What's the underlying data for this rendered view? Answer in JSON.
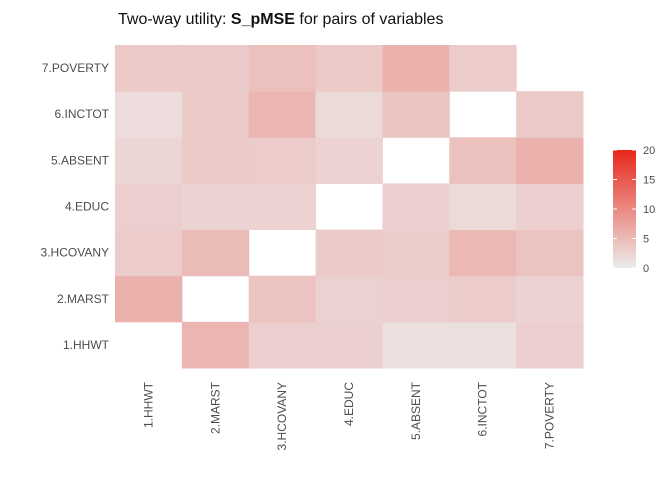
{
  "chart_data": {
    "type": "heatmap",
    "title_prefix": "Two-way utility: ",
    "title_bold": "S_pMSE",
    "title_suffix": " for pairs of variables",
    "variables": [
      "1.HHWT",
      "2.MARST",
      "3.HCOVANY",
      "4.EDUC",
      "5.ABSENT",
      "6.INCTOT",
      "7.POVERTY"
    ],
    "grid": false,
    "legend_position": "right",
    "color_scale": {
      "low": "#ececec",
      "high": "#e8271a",
      "min": 0,
      "max": 20
    },
    "legend_ticks": [
      0,
      5,
      10,
      15,
      20
    ],
    "cells": [
      {
        "row": "1.HHWT",
        "col": "2.MARST",
        "value": 5.5
      },
      {
        "row": "1.HHWT",
        "col": "3.HCOVANY",
        "value": 3.0
      },
      {
        "row": "1.HHWT",
        "col": "4.EDUC",
        "value": 2.8
      },
      {
        "row": "1.HHWT",
        "col": "5.ABSENT",
        "value": 1.3
      },
      {
        "row": "1.HHWT",
        "col": "6.INCTOT",
        "value": 1.2
      },
      {
        "row": "1.HHWT",
        "col": "7.POVERTY",
        "value": 3.0
      },
      {
        "row": "2.MARST",
        "col": "1.HHWT",
        "value": 6.0
      },
      {
        "row": "2.MARST",
        "col": "3.HCOVANY",
        "value": 4.2
      },
      {
        "row": "2.MARST",
        "col": "4.EDUC",
        "value": 2.7
      },
      {
        "row": "2.MARST",
        "col": "5.ABSENT",
        "value": 3.0
      },
      {
        "row": "2.MARST",
        "col": "6.INCTOT",
        "value": 3.2
      },
      {
        "row": "2.MARST",
        "col": "7.POVERTY",
        "value": 2.5
      },
      {
        "row": "3.HCOVANY",
        "col": "1.HHWT",
        "value": 3.2
      },
      {
        "row": "3.HCOVANY",
        "col": "2.MARST",
        "value": 5.0
      },
      {
        "row": "3.HCOVANY",
        "col": "4.EDUC",
        "value": 3.3
      },
      {
        "row": "3.HCOVANY",
        "col": "5.ABSENT",
        "value": 3.1
      },
      {
        "row": "3.HCOVANY",
        "col": "6.INCTOT",
        "value": 5.3
      },
      {
        "row": "3.HCOVANY",
        "col": "7.POVERTY",
        "value": 4.2
      },
      {
        "row": "4.EDUC",
        "col": "1.HHWT",
        "value": 3.0
      },
      {
        "row": "4.EDUC",
        "col": "2.MARST",
        "value": 2.5
      },
      {
        "row": "4.EDUC",
        "col": "3.HCOVANY",
        "value": 2.5
      },
      {
        "row": "4.EDUC",
        "col": "5.ABSENT",
        "value": 2.8
      },
      {
        "row": "4.EDUC",
        "col": "6.INCTOT",
        "value": 1.8
      },
      {
        "row": "4.EDUC",
        "col": "7.POVERTY",
        "value": 3.0
      },
      {
        "row": "5.ABSENT",
        "col": "1.HHWT",
        "value": 2.2
      },
      {
        "row": "5.ABSENT",
        "col": "2.MARST",
        "value": 3.5
      },
      {
        "row": "5.ABSENT",
        "col": "3.HCOVANY",
        "value": 3.2
      },
      {
        "row": "5.ABSENT",
        "col": "4.EDUC",
        "value": 2.5
      },
      {
        "row": "5.ABSENT",
        "col": "6.INCTOT",
        "value": 4.5
      },
      {
        "row": "5.ABSENT",
        "col": "7.POVERTY",
        "value": 6.0
      },
      {
        "row": "6.INCTOT",
        "col": "1.HHWT",
        "value": 1.5
      },
      {
        "row": "6.INCTOT",
        "col": "2.MARST",
        "value": 3.5
      },
      {
        "row": "6.INCTOT",
        "col": "3.HCOVANY",
        "value": 5.5
      },
      {
        "row": "6.INCTOT",
        "col": "4.EDUC",
        "value": 1.8
      },
      {
        "row": "6.INCTOT",
        "col": "5.ABSENT",
        "value": 4.0
      },
      {
        "row": "6.INCTOT",
        "col": "7.POVERTY",
        "value": 3.5
      },
      {
        "row": "7.POVERTY",
        "col": "1.HHWT",
        "value": 3.5
      },
      {
        "row": "7.POVERTY",
        "col": "2.MARST",
        "value": 3.3
      },
      {
        "row": "7.POVERTY",
        "col": "3.HCOVANY",
        "value": 4.5
      },
      {
        "row": "7.POVERTY",
        "col": "4.EDUC",
        "value": 3.5
      },
      {
        "row": "7.POVERTY",
        "col": "5.ABSENT",
        "value": 6.0
      },
      {
        "row": "7.POVERTY",
        "col": "6.INCTOT",
        "value": 3.2
      }
    ]
  }
}
